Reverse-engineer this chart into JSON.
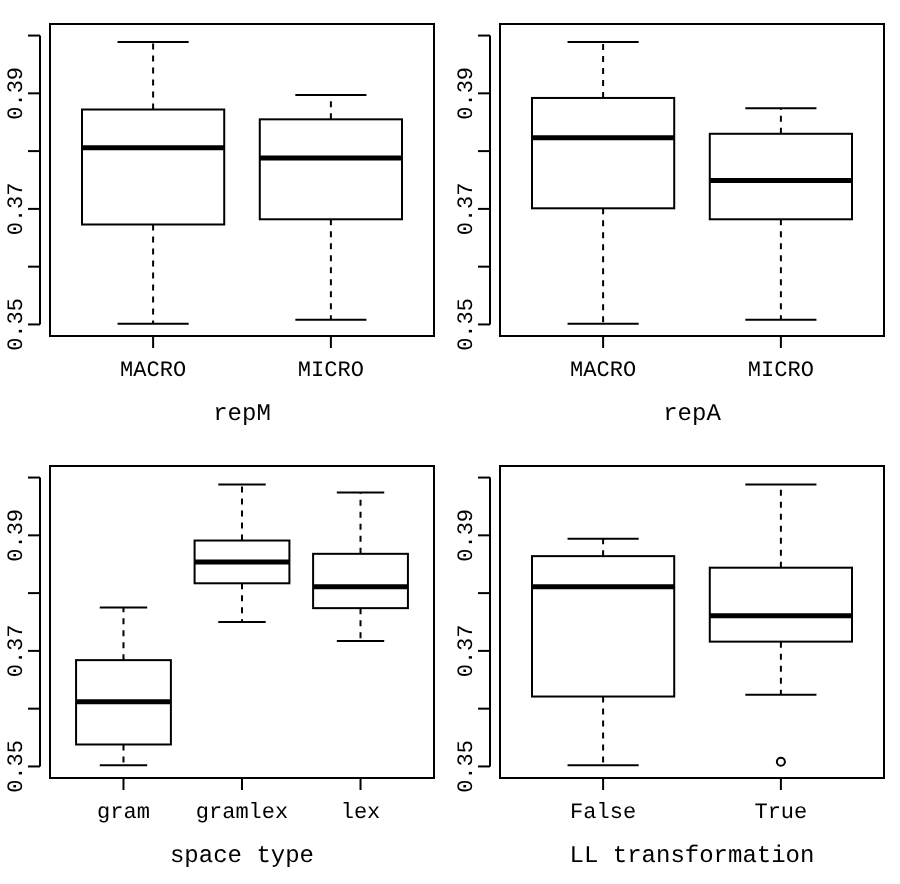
{
  "chart_data": [
    {
      "type": "box",
      "categories": [
        "MACRO",
        "MICRO"
      ],
      "xlabel": "repM",
      "ylim": [
        0.348,
        0.402
      ],
      "yticks": [
        0.35,
        {
          "value": 0.36,
          "label": null
        },
        0.37,
        {
          "value": 0.38,
          "label": null
        },
        0.39,
        {
          "value": 0.4,
          "label": null
        }
      ],
      "boxes": [
        {
          "low": 0.3501,
          "q1": 0.3673,
          "median": 0.3806,
          "q3": 0.3872,
          "high": 0.3989
        },
        {
          "low": 0.3508,
          "q1": 0.3682,
          "median": 0.3788,
          "q3": 0.3855,
          "high": 0.3897
        }
      ]
    },
    {
      "type": "box",
      "categories": [
        "MACRO",
        "MICRO"
      ],
      "xlabel": "repA",
      "ylim": [
        0.348,
        0.402
      ],
      "yticks": [
        0.35,
        {
          "value": 0.36,
          "label": null
        },
        0.37,
        {
          "value": 0.38,
          "label": null
        },
        0.39,
        {
          "value": 0.4,
          "label": null
        }
      ],
      "boxes": [
        {
          "low": 0.3501,
          "q1": 0.3701,
          "median": 0.3823,
          "q3": 0.3892,
          "high": 0.3989
        },
        {
          "low": 0.3508,
          "q1": 0.3682,
          "median": 0.3749,
          "q3": 0.383,
          "high": 0.3874
        }
      ]
    },
    {
      "type": "box",
      "categories": [
        "gram",
        "gramlex",
        "lex"
      ],
      "xlabel": "space type",
      "ylim": [
        0.348,
        0.402
      ],
      "yticks": [
        0.35,
        {
          "value": 0.36,
          "label": null
        },
        0.37,
        {
          "value": 0.38,
          "label": null
        },
        0.39,
        {
          "value": 0.4,
          "label": null
        }
      ],
      "boxes": [
        {
          "low": 0.3502,
          "q1": 0.3538,
          "median": 0.3612,
          "q3": 0.3684,
          "high": 0.3775
        },
        {
          "low": 0.375,
          "q1": 0.3817,
          "median": 0.3854,
          "q3": 0.3891,
          "high": 0.3988
        },
        {
          "low": 0.3717,
          "q1": 0.3774,
          "median": 0.3811,
          "q3": 0.3868,
          "high": 0.3974
        }
      ]
    },
    {
      "type": "box",
      "categories": [
        "False",
        "True"
      ],
      "xlabel": "LL transformation",
      "ylim": [
        0.348,
        0.402
      ],
      "yticks": [
        0.35,
        {
          "value": 0.36,
          "label": null
        },
        0.37,
        {
          "value": 0.38,
          "label": null
        },
        0.39,
        {
          "value": 0.4,
          "label": null
        }
      ],
      "boxes": [
        {
          "low": 0.3502,
          "q1": 0.3621,
          "median": 0.3811,
          "q3": 0.3864,
          "high": 0.3894
        },
        {
          "low": 0.3624,
          "q1": 0.3716,
          "median": 0.3761,
          "q3": 0.3844,
          "high": 0.3988,
          "outliers": [
            0.3508
          ]
        }
      ]
    }
  ]
}
